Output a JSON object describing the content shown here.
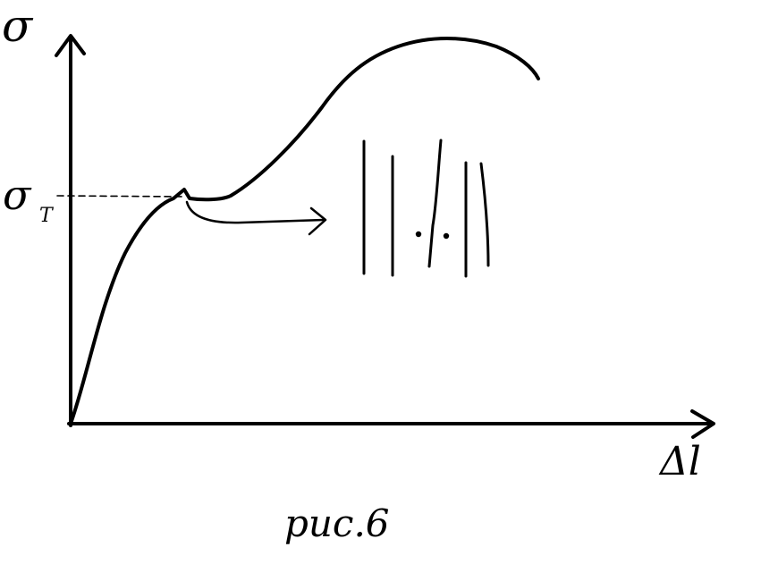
{
  "diagram": {
    "y_axis_label": "σ",
    "x_axis_label": "Δl",
    "yield_label": "σ",
    "yield_subscript": "T",
    "caption": "рис.6"
  },
  "colors": {
    "ink": "#000000",
    "background": "#ffffff"
  }
}
